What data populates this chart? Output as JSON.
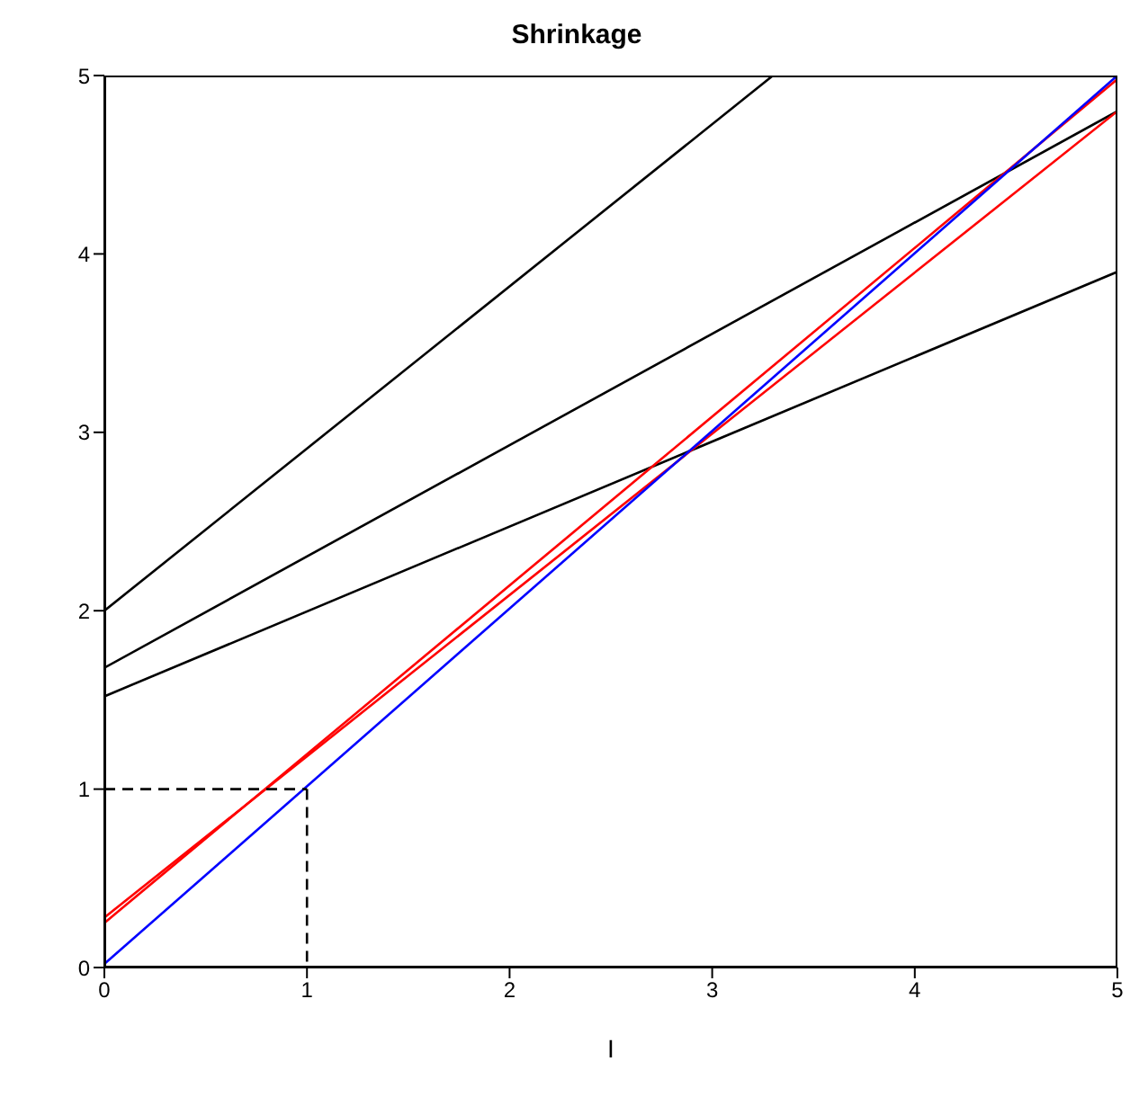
{
  "chart_data": {
    "type": "line",
    "title": "Shrinkage",
    "xlabel": "I",
    "xlim": [
      0,
      5
    ],
    "ylim": [
      0,
      5
    ],
    "xticks": [
      0,
      1,
      2,
      3,
      4,
      5
    ],
    "yticks": [
      0,
      1,
      2,
      3,
      4,
      5
    ],
    "grid": false,
    "marker": "none",
    "series": [
      {
        "color": "#000000",
        "x": [
          0,
          3.3
        ],
        "values": [
          2,
          5
        ]
      },
      {
        "color": "#000000",
        "x": [
          0,
          5
        ],
        "values": [
          1.68,
          4.8
        ]
      },
      {
        "color": "#000000",
        "x": [
          0,
          5
        ],
        "values": [
          1.52,
          3.9
        ]
      },
      {
        "color": "#ff0000",
        "x": [
          0,
          5
        ],
        "values": [
          0.28,
          4.8
        ]
      },
      {
        "color": "#ff0000",
        "x": [
          0,
          5
        ],
        "values": [
          0.25,
          4.98
        ]
      },
      {
        "color": "#0000ff",
        "x": [
          0,
          5
        ],
        "values": [
          0.02,
          5
        ]
      },
      {
        "color": "#000000",
        "x": [
          0,
          1
        ],
        "values": [
          1,
          1
        ],
        "line_style": "dashed"
      },
      {
        "color": "#000000",
        "x": [
          1,
          1
        ],
        "values": [
          1,
          0
        ],
        "line_style": "dashed"
      }
    ]
  }
}
